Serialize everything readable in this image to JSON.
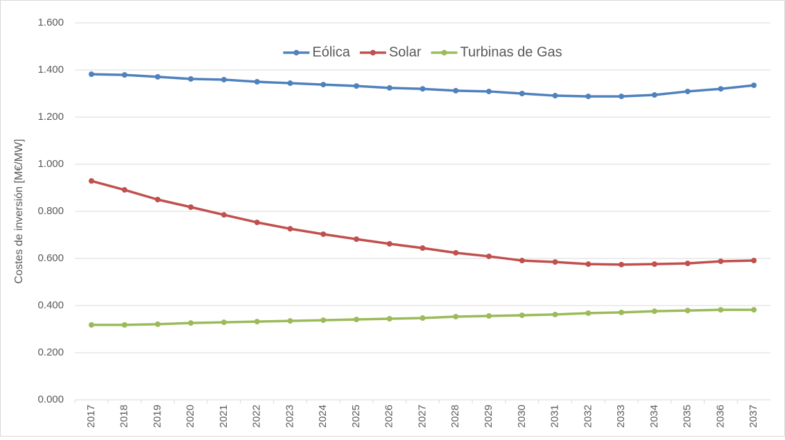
{
  "chart_data": {
    "type": "line",
    "y_label": "Costes de inversión [M€/MW]",
    "categories": [
      "2017",
      "2018",
      "2019",
      "2020",
      "2021",
      "2022",
      "2023",
      "2024",
      "2025",
      "2026",
      "2027",
      "2028",
      "2029",
      "2030",
      "2031",
      "2032",
      "2033",
      "2034",
      "2035",
      "2036",
      "2037"
    ],
    "series": [
      {
        "name": "Eólica",
        "color": "#4f81bd",
        "values": [
          1.382,
          1.379,
          1.371,
          1.362,
          1.359,
          1.35,
          1.344,
          1.338,
          1.332,
          1.324,
          1.32,
          1.312,
          1.309,
          1.3,
          1.291,
          1.288,
          1.288,
          1.294,
          1.309,
          1.32,
          1.335
        ]
      },
      {
        "name": "Solar",
        "color": "#c0504d",
        "values": [
          0.929,
          0.891,
          0.85,
          0.818,
          0.785,
          0.753,
          0.726,
          0.703,
          0.682,
          0.662,
          0.644,
          0.624,
          0.609,
          0.591,
          0.585,
          0.576,
          0.574,
          0.576,
          0.579,
          0.588,
          0.591
        ]
      },
      {
        "name": "Turbinas de Gas",
        "color": "#9bbb59",
        "values": [
          0.318,
          0.318,
          0.321,
          0.326,
          0.329,
          0.332,
          0.335,
          0.338,
          0.341,
          0.344,
          0.347,
          0.353,
          0.356,
          0.359,
          0.362,
          0.368,
          0.371,
          0.376,
          0.379,
          0.382,
          0.382
        ]
      }
    ],
    "ylim": [
      0,
      1.6
    ],
    "yticks": [
      {
        "value": 0,
        "label": "0.000"
      },
      {
        "value": 0.2,
        "label": "0.200"
      },
      {
        "value": 0.4,
        "label": "0.400"
      },
      {
        "value": 0.6,
        "label": "0.600"
      },
      {
        "value": 0.8,
        "label": "0.800"
      },
      {
        "value": 1.0,
        "label": "1.000"
      },
      {
        "value": 1.2,
        "label": "1.200"
      },
      {
        "value": 1.4,
        "label": "1.400"
      },
      {
        "value": 1.6,
        "label": "1.600"
      }
    ],
    "grid": true,
    "legend": "top"
  }
}
